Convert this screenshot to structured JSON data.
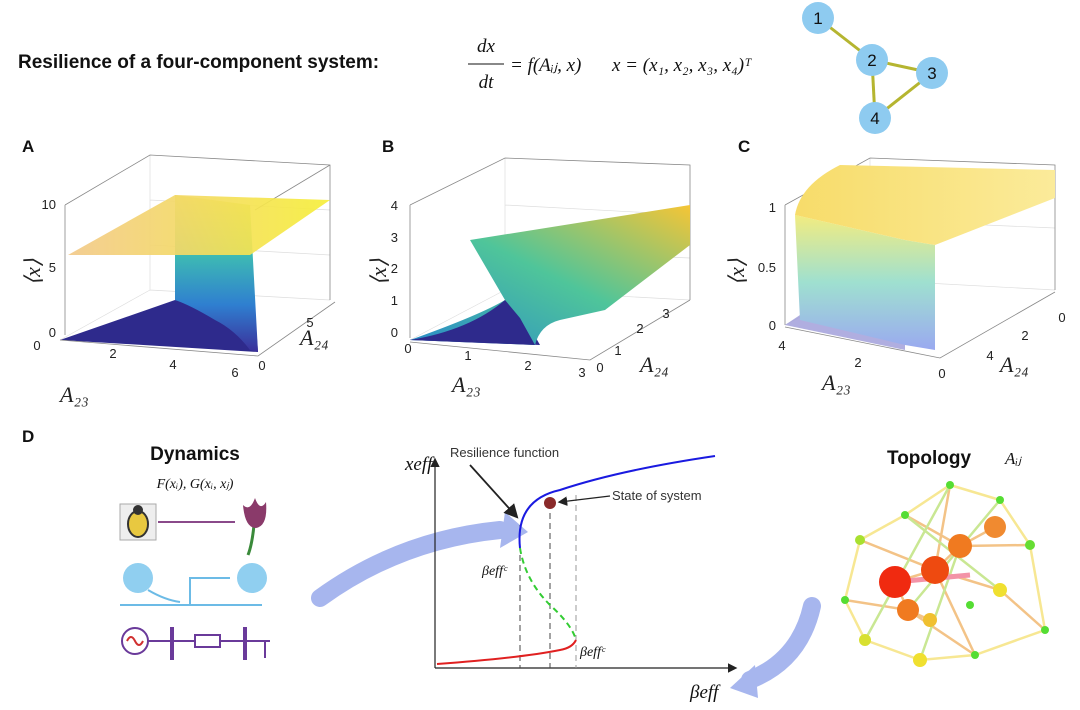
{
  "header": {
    "title": "Resilience of a four-component system:",
    "equation": {
      "numerator": "dx",
      "denominator": "dt",
      "rhs": "= f(Aᵢⱼ, x)",
      "state": "x = (x₁, x₂, x₃, x₄)ᵀ"
    },
    "network_nodes": [
      "1",
      "2",
      "3",
      "4"
    ]
  },
  "panels": [
    {
      "label": "A",
      "z_label": "⟨x⟩",
      "x_label": "A₂₃",
      "y_label": "A₂₄",
      "z_ticks": [
        0,
        5,
        10
      ],
      "x_ticks": [
        0,
        2,
        4,
        6
      ],
      "y_ticks": [
        0,
        5
      ]
    },
    {
      "label": "B",
      "z_label": "⟨x⟩",
      "x_label": "A₂₃",
      "y_label": "A₂₄",
      "z_ticks": [
        0,
        1,
        2,
        3,
        4
      ],
      "x_ticks": [
        0,
        1,
        2,
        3
      ],
      "y_ticks": [
        0,
        1,
        2,
        3
      ]
    },
    {
      "label": "C",
      "z_label": "⟨x⟩",
      "x_label": "A₂₃",
      "y_label": "A₂₄",
      "z_ticks": [
        0,
        0.5,
        1
      ],
      "x_ticks": [
        4,
        2,
        0
      ],
      "y_ticks": [
        4,
        2,
        0
      ]
    }
  ],
  "panel_d": {
    "label": "D",
    "dynamics": {
      "title": "Dynamics",
      "formula": "F(xᵢ), G(xᵢ, xⱼ)"
    },
    "plot": {
      "y_label": "xeff",
      "x_label": "βeff",
      "annotation_function": "Resilience function",
      "annotation_state": "State of system",
      "critical_upper": "βeffᶜ",
      "critical_lower": "βeffᶜ"
    },
    "topology": {
      "title": "Topology",
      "symbol": "Aᵢⱼ"
    }
  }
}
